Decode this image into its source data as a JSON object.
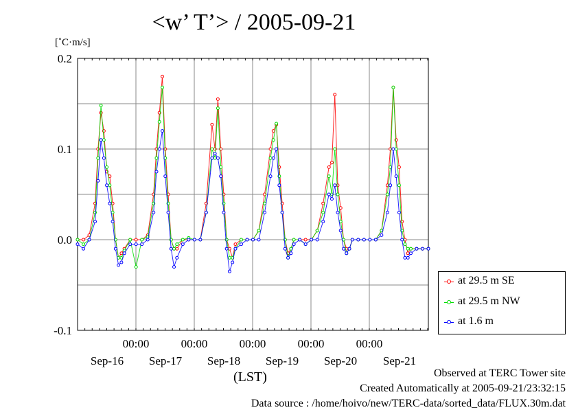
{
  "title": "<w’ T’> / 2005-09-21",
  "y_unit": "[˚C·m/s]",
  "x_unit": "(LST)",
  "footer": {
    "line1": "Observed at TERC Tower site",
    "line2": "Created Automatically at 2005-09-21/23:32:15",
    "line3": "Data source : /home/hoivo/new/TERC-data/sorted_data/FLUX.30m.dat"
  },
  "colors": {
    "se": "#ff0000",
    "nw": "#00dd00",
    "low": "#0000ff",
    "grid": "#888888"
  },
  "chart_data": {
    "type": "line",
    "title": "<w’ T’> / 2005-09-21",
    "ylabel": "[˚C·m/s]",
    "xlabel": "(LST)",
    "ylim": [
      -0.1,
      0.2
    ],
    "yticks": [
      "-0.1",
      "0.0",
      "0.1",
      "0.2"
    ],
    "xlim": [
      0,
      6
    ],
    "time_ticks": [
      {
        "time": "00:00",
        "date": "Sep-16"
      },
      {
        "time": "00:00",
        "date": "Sep-17"
      },
      {
        "time": "00:00",
        "date": "Sep-18"
      },
      {
        "time": "00:00",
        "date": "Sep-19"
      },
      {
        "time": "00:00",
        "date": "Sep-20"
      },
      {
        "time": "00:00",
        "date": "Sep-21"
      }
    ],
    "grid": true,
    "legend": "bottom-right",
    "x_note": "x values are days elapsed from start of plotted period; time ticks at x = 1..6",
    "series": [
      {
        "name": "at 29.5 m SE",
        "color": "#ff0000",
        "x": [
          0.0,
          0.1,
          0.2,
          0.3,
          0.35,
          0.4,
          0.45,
          0.5,
          0.55,
          0.6,
          0.65,
          0.7,
          0.75,
          0.8,
          0.9,
          1.0,
          1.1,
          1.2,
          1.3,
          1.35,
          1.4,
          1.45,
          1.5,
          1.55,
          1.6,
          1.65,
          1.7,
          1.8,
          1.9,
          2.0,
          2.1,
          2.2,
          2.3,
          2.35,
          2.4,
          2.45,
          2.5,
          2.55,
          2.6,
          2.65,
          2.7,
          2.8,
          2.9,
          3.0,
          3.1,
          3.2,
          3.3,
          3.35,
          3.4,
          3.45,
          3.5,
          3.55,
          3.6,
          3.65,
          3.7,
          3.8,
          3.9,
          4.0,
          4.1,
          4.2,
          4.3,
          4.35,
          4.4,
          4.45,
          4.5,
          4.55,
          4.6,
          4.65,
          4.7,
          4.8,
          4.9,
          5.0,
          5.1,
          5.2,
          5.3,
          5.35,
          5.4,
          5.45,
          5.5,
          5.55,
          5.6,
          5.65,
          5.7,
          5.8,
          5.9,
          6.0
        ],
        "y": [
          0.0,
          0.0,
          0.005,
          0.04,
          0.1,
          0.14,
          0.12,
          0.075,
          0.07,
          0.04,
          0.0,
          -0.02,
          -0.015,
          -0.01,
          0.0,
          0.0,
          0.0,
          0.005,
          0.05,
          0.1,
          0.14,
          0.18,
          0.1,
          0.05,
          0.0,
          -0.01,
          -0.01,
          0.0,
          0.0,
          0.0,
          0.0,
          0.04,
          0.127,
          0.1,
          0.155,
          0.1,
          0.05,
          0.0,
          -0.01,
          -0.02,
          -0.005,
          0.0,
          0.0,
          0.0,
          0.01,
          0.05,
          0.1,
          0.12,
          0.127,
          0.08,
          0.04,
          0.0,
          -0.015,
          -0.01,
          0.0,
          0.0,
          0.0,
          0.0,
          0.01,
          0.04,
          0.08,
          0.085,
          0.16,
          0.06,
          0.035,
          0.0,
          -0.01,
          -0.01,
          0.0,
          0.0,
          0.0,
          0.0,
          0.0,
          0.01,
          0.06,
          0.1,
          0.168,
          0.11,
          0.08,
          0.02,
          0.0,
          -0.015,
          -0.01,
          -0.01,
          -0.01,
          -0.01
        ]
      },
      {
        "name": "at 29.5 m NW",
        "color": "#00dd00",
        "x": [
          0.0,
          0.1,
          0.2,
          0.3,
          0.35,
          0.4,
          0.45,
          0.5,
          0.55,
          0.6,
          0.65,
          0.7,
          0.75,
          0.8,
          0.9,
          1.0,
          1.1,
          1.2,
          1.3,
          1.35,
          1.4,
          1.45,
          1.5,
          1.55,
          1.6,
          1.65,
          1.7,
          1.8,
          1.9,
          2.0,
          2.1,
          2.2,
          2.3,
          2.35,
          2.4,
          2.45,
          2.5,
          2.55,
          2.6,
          2.65,
          2.7,
          2.8,
          2.9,
          3.0,
          3.1,
          3.2,
          3.3,
          3.35,
          3.4,
          3.45,
          3.5,
          3.55,
          3.6,
          3.65,
          3.7,
          3.8,
          3.9,
          4.0,
          4.1,
          4.2,
          4.3,
          4.35,
          4.4,
          4.45,
          4.5,
          4.55,
          4.6,
          4.65,
          4.7,
          4.8,
          4.9,
          5.0,
          5.1,
          5.2,
          5.3,
          5.35,
          5.4,
          5.45,
          5.5,
          5.55,
          5.6,
          5.65,
          5.7,
          5.8,
          5.9,
          6.0
        ],
        "y": [
          0.0,
          -0.005,
          0.0,
          0.03,
          0.09,
          0.148,
          0.11,
          0.08,
          0.06,
          0.03,
          0.0,
          -0.02,
          -0.02,
          -0.012,
          0.0,
          -0.03,
          0.0,
          0.003,
          0.04,
          0.09,
          0.13,
          0.168,
          0.09,
          0.04,
          0.0,
          -0.01,
          -0.005,
          0.0,
          0.002,
          0.0,
          0.0,
          0.03,
          0.1,
          0.09,
          0.145,
          0.08,
          0.04,
          0.0,
          -0.02,
          -0.02,
          -0.01,
          0.0,
          0.0,
          0.0,
          0.01,
          0.04,
          0.09,
          0.11,
          0.128,
          0.07,
          0.03,
          0.0,
          -0.02,
          -0.01,
          0.0,
          0.0,
          -0.005,
          0.0,
          0.01,
          0.03,
          0.07,
          0.05,
          0.1,
          0.05,
          0.02,
          0.0,
          -0.015,
          -0.01,
          0.0,
          0.0,
          0.0,
          0.0,
          0.0,
          0.01,
          0.05,
          0.08,
          0.168,
          0.1,
          0.06,
          0.01,
          -0.005,
          -0.01,
          -0.01,
          -0.01,
          -0.01,
          -0.01
        ]
      },
      {
        "name": "at 1.6 m",
        "color": "#0000ff",
        "x": [
          0.0,
          0.1,
          0.2,
          0.3,
          0.35,
          0.4,
          0.45,
          0.5,
          0.55,
          0.6,
          0.65,
          0.7,
          0.75,
          0.8,
          0.9,
          1.0,
          1.1,
          1.2,
          1.3,
          1.35,
          1.4,
          1.45,
          1.5,
          1.55,
          1.6,
          1.65,
          1.7,
          1.8,
          1.9,
          2.0,
          2.1,
          2.2,
          2.3,
          2.35,
          2.4,
          2.45,
          2.5,
          2.55,
          2.6,
          2.65,
          2.7,
          2.8,
          2.9,
          3.0,
          3.1,
          3.2,
          3.3,
          3.35,
          3.4,
          3.45,
          3.5,
          3.55,
          3.6,
          3.65,
          3.7,
          3.8,
          3.9,
          4.0,
          4.1,
          4.2,
          4.3,
          4.35,
          4.4,
          4.45,
          4.5,
          4.55,
          4.6,
          4.65,
          4.7,
          4.8,
          4.9,
          5.0,
          5.1,
          5.2,
          5.3,
          5.35,
          5.4,
          5.45,
          5.5,
          5.55,
          5.6,
          5.65,
          5.7,
          5.8,
          5.9,
          6.0
        ],
        "y": [
          -0.005,
          -0.01,
          0.0,
          0.02,
          0.065,
          0.11,
          0.09,
          0.06,
          0.04,
          0.02,
          -0.01,
          -0.028,
          -0.025,
          -0.015,
          -0.005,
          -0.005,
          -0.005,
          0.0,
          0.03,
          0.075,
          0.1,
          0.12,
          0.07,
          0.03,
          -0.01,
          -0.03,
          -0.02,
          -0.005,
          0.0,
          0.0,
          0.0,
          0.03,
          0.09,
          0.095,
          0.09,
          0.07,
          0.03,
          -0.01,
          -0.035,
          -0.025,
          -0.01,
          -0.005,
          0.0,
          0.0,
          0.0,
          0.03,
          0.07,
          0.09,
          0.1,
          0.06,
          0.03,
          -0.01,
          -0.02,
          -0.015,
          -0.005,
          0.0,
          -0.005,
          0.0,
          0.0,
          0.02,
          0.05,
          0.045,
          0.06,
          0.03,
          0.01,
          -0.01,
          -0.015,
          -0.01,
          0.0,
          0.0,
          0.0,
          0.0,
          0.0,
          0.005,
          0.03,
          0.06,
          0.1,
          0.07,
          0.03,
          0.0,
          -0.02,
          -0.02,
          -0.015,
          -0.01,
          -0.01,
          -0.01
        ]
      }
    ]
  }
}
